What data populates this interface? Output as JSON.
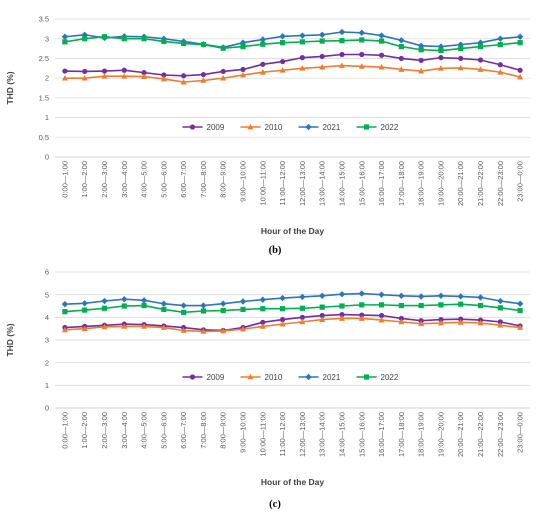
{
  "chart_data": [
    {
      "type": "line",
      "caption": "(b)",
      "xlabel": "Hour of the Day",
      "ylabel": "THD (%)",
      "ylim": [
        0,
        3.5
      ],
      "yticks": [
        "0",
        "0.5",
        "1",
        "1.5",
        "2",
        "2.5",
        "3",
        "3.5"
      ],
      "grid": true,
      "legend_position": "bottom-center-inside",
      "categories": [
        "0:00—1:00",
        "1:00—2:00",
        "2:00—3:00",
        "3:00—4:00",
        "4:00—5:00",
        "5:00—6:00",
        "6:00—7:00",
        "7:00—8:00",
        "8:00—9:00",
        "9:00—10:00",
        "10:00—11:00",
        "11:00—12:00",
        "12:00—13:00",
        "13:00—14:00",
        "14:00—15:00",
        "15:00—16:00",
        "16:00—17:00",
        "17:00—18:00",
        "18:00—19:00",
        "19:00—20:00",
        "20:00—21:00",
        "21:00—22:00",
        "22:00—23:00",
        "23:00—0:00"
      ],
      "series": [
        {
          "name": "2009",
          "color": "#7030A0",
          "marker": "circle",
          "values": [
            2.18,
            2.17,
            2.18,
            2.2,
            2.14,
            2.08,
            2.06,
            2.09,
            2.17,
            2.22,
            2.35,
            2.42,
            2.52,
            2.55,
            2.6,
            2.6,
            2.58,
            2.5,
            2.45,
            2.52,
            2.5,
            2.46,
            2.34,
            2.2
          ]
        },
        {
          "name": "2010",
          "color": "#ED7D31",
          "marker": "triangle",
          "values": [
            2.0,
            2.0,
            2.05,
            2.05,
            2.04,
            1.98,
            1.9,
            1.94,
            2.0,
            2.08,
            2.15,
            2.2,
            2.25,
            2.28,
            2.32,
            2.3,
            2.28,
            2.22,
            2.18,
            2.25,
            2.26,
            2.22,
            2.15,
            2.03
          ]
        },
        {
          "name": "2021",
          "color": "#2E75B6",
          "marker": "diamond",
          "values": [
            3.05,
            3.1,
            3.02,
            3.06,
            3.05,
            3.0,
            2.93,
            2.86,
            2.78,
            2.9,
            2.98,
            3.06,
            3.08,
            3.1,
            3.17,
            3.15,
            3.08,
            2.96,
            2.82,
            2.8,
            2.85,
            2.9,
            3.0,
            3.05
          ]
        },
        {
          "name": "2022",
          "color": "#00B050",
          "marker": "square",
          "values": [
            2.92,
            3.0,
            3.05,
            3.0,
            3.0,
            2.93,
            2.88,
            2.85,
            2.76,
            2.8,
            2.86,
            2.9,
            2.92,
            2.94,
            2.95,
            2.97,
            2.94,
            2.8,
            2.72,
            2.7,
            2.75,
            2.8,
            2.85,
            2.9
          ]
        }
      ]
    },
    {
      "type": "line",
      "caption": "(c)",
      "xlabel": "Hour of the Day",
      "ylabel": "THD (%)",
      "ylim": [
        0,
        6
      ],
      "yticks": [
        "0",
        "1",
        "2",
        "3",
        "4",
        "5",
        "6"
      ],
      "grid": true,
      "legend_position": "bottom-center-inside",
      "categories": [
        "0:00—1:00",
        "1:00—2:00",
        "2:00—3:00",
        "3:00—4:00",
        "4:00—5:00",
        "5:00—6:00",
        "6:00—7:00",
        "7:00—8:00",
        "8:00—9:00",
        "9:00—10:00",
        "10:00—11:00",
        "11:00—12:00",
        "12:00—13:00",
        "13:00—14:00",
        "14:00—15:00",
        "15:00—16:00",
        "16:00—17:00",
        "17:00—18:00",
        "18:00—19:00",
        "19:00—20:00",
        "20:00—21:00",
        "21:00—22:00",
        "22:00—23:00",
        "23:00—0:00"
      ],
      "series": [
        {
          "name": "2009",
          "color": "#7030A0",
          "marker": "circle",
          "values": [
            3.55,
            3.6,
            3.65,
            3.7,
            3.68,
            3.62,
            3.55,
            3.45,
            3.42,
            3.55,
            3.78,
            3.9,
            4.0,
            4.08,
            4.12,
            4.1,
            4.08,
            3.95,
            3.85,
            3.9,
            3.92,
            3.88,
            3.8,
            3.62
          ]
        },
        {
          "name": "2010",
          "color": "#ED7D31",
          "marker": "triangle",
          "values": [
            3.45,
            3.5,
            3.58,
            3.6,
            3.6,
            3.55,
            3.42,
            3.38,
            3.4,
            3.48,
            3.6,
            3.7,
            3.8,
            3.9,
            3.95,
            3.95,
            3.88,
            3.8,
            3.72,
            3.75,
            3.78,
            3.75,
            3.65,
            3.55
          ]
        },
        {
          "name": "2021",
          "color": "#2E75B6",
          "marker": "diamond",
          "values": [
            4.58,
            4.62,
            4.72,
            4.8,
            4.75,
            4.6,
            4.52,
            4.52,
            4.6,
            4.7,
            4.78,
            4.85,
            4.9,
            4.95,
            5.02,
            5.05,
            5.0,
            4.95,
            4.92,
            4.95,
            4.92,
            4.88,
            4.72,
            4.6
          ]
        },
        {
          "name": "2022",
          "color": "#00B050",
          "marker": "square",
          "values": [
            4.25,
            4.32,
            4.4,
            4.5,
            4.52,
            4.35,
            4.22,
            4.28,
            4.3,
            4.35,
            4.38,
            4.38,
            4.4,
            4.45,
            4.5,
            4.55,
            4.55,
            4.52,
            4.52,
            4.55,
            4.58,
            4.52,
            4.42,
            4.3
          ]
        }
      ]
    }
  ]
}
